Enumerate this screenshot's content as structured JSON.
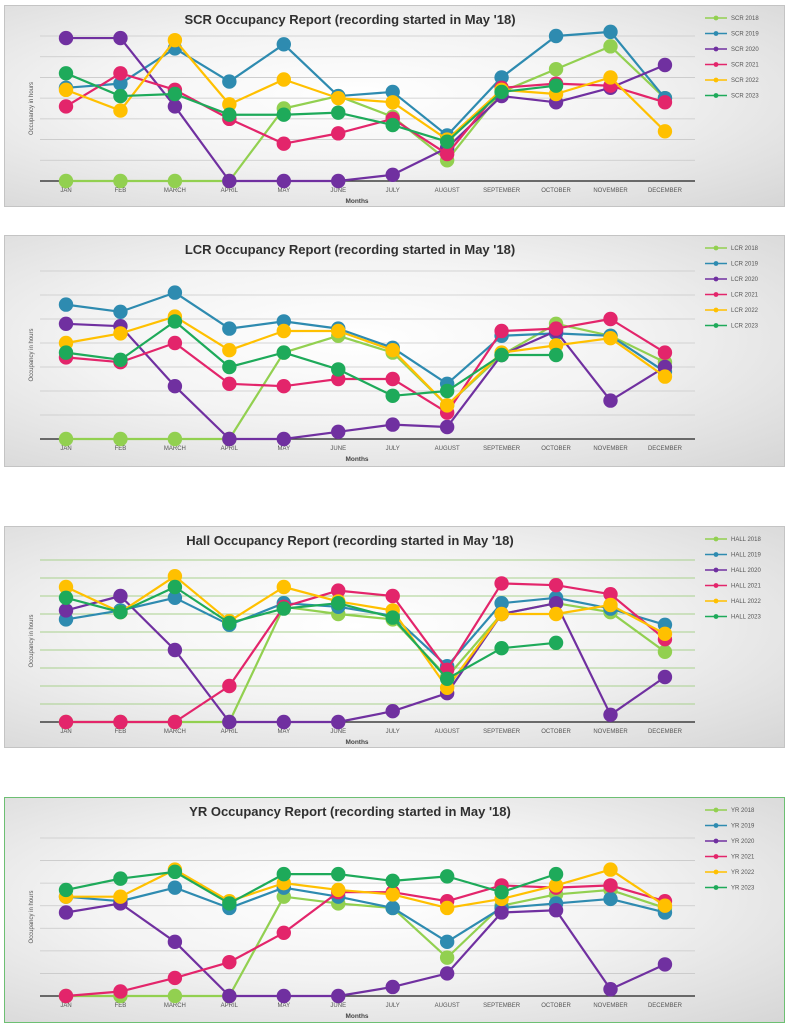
{
  "chart_data": [
    {
      "type": "line",
      "id": "scr",
      "title": "SCR  Occupancy Report (recording started in May '18)",
      "xlabel": "Months",
      "ylabel": "Occupancy in hours",
      "ylim": [
        0,
        7
      ],
      "grid": true,
      "legend_position": "right",
      "categories": [
        "JAN",
        "FEB",
        "MARCH",
        "APRIL",
        "MAY",
        "JUNE",
        "JULY",
        "AUGUST",
        "SEPTEMBER",
        "OCTOBER",
        "NOVEMBER",
        "DECEMBER"
      ],
      "series": [
        {
          "name": "SCR 2018",
          "color": "#92d050",
          "values": [
            0,
            0,
            0,
            0,
            3.5,
            4.1,
            3.1,
            1.0,
            4.3,
            5.4,
            6.5,
            4.0
          ]
        },
        {
          "name": "SCR 2019",
          "color": "#2e8bb0",
          "values": [
            4.5,
            4.7,
            6.4,
            4.8,
            6.6,
            4.1,
            4.3,
            2.2,
            5.0,
            7.0,
            7.2,
            4.0
          ]
        },
        {
          "name": "SCR 2020",
          "color": "#7030a0",
          "values": [
            6.9,
            6.9,
            3.6,
            0,
            0,
            0,
            0.3,
            1.6,
            4.1,
            3.8,
            4.5,
            5.6
          ]
        },
        {
          "name": "SCR 2021",
          "color": "#e3256b",
          "values": [
            3.6,
            5.2,
            4.4,
            3.0,
            1.8,
            2.3,
            3.0,
            1.3,
            4.5,
            4.7,
            4.6,
            3.8
          ]
        },
        {
          "name": "SCR 2022",
          "color": "#ffc000",
          "values": [
            4.4,
            3.4,
            6.8,
            3.7,
            4.9,
            4.0,
            3.8,
            2.0,
            4.4,
            4.2,
            5.0,
            2.4
          ]
        },
        {
          "name": "SCR 2023",
          "color": "#1eaa5a",
          "values": [
            5.2,
            4.1,
            4.2,
            3.2,
            3.2,
            3.3,
            2.7,
            1.9,
            4.3,
            4.6,
            null,
            null
          ]
        }
      ]
    },
    {
      "type": "line",
      "id": "lcr",
      "title": "LCR  Occupancy Report (recording started in May '18)",
      "xlabel": "Months",
      "ylabel": "Occupancy in hours",
      "ylim": [
        0,
        7
      ],
      "grid": true,
      "legend_position": "right",
      "categories": [
        "JAN",
        "FEB",
        "MARCH",
        "APRIL",
        "MAY",
        "JUNE",
        "JULY",
        "AUGUST",
        "SEPTEMBER",
        "OCTOBER",
        "NOVEMBER",
        "DECEMBER"
      ],
      "series": [
        {
          "name": "LCR 2018",
          "color": "#92d050",
          "values": [
            0,
            0,
            0,
            0,
            3.6,
            4.3,
            3.6,
            1.4,
            3.5,
            4.8,
            4.3,
            3.2
          ]
        },
        {
          "name": "LCR 2019",
          "color": "#2e8bb0",
          "values": [
            5.6,
            5.3,
            6.1,
            4.6,
            4.9,
            4.6,
            3.8,
            2.3,
            4.3,
            4.4,
            4.3,
            2.8
          ]
        },
        {
          "name": "LCR 2020",
          "color": "#7030a0",
          "values": [
            4.8,
            4.7,
            2.2,
            0,
            0,
            0.3,
            0.6,
            0.5,
            3.5,
            4.5,
            1.6,
            3.0
          ]
        },
        {
          "name": "LCR 2021",
          "color": "#e3256b",
          "values": [
            3.4,
            3.2,
            4.0,
            2.3,
            2.2,
            2.5,
            2.5,
            1.1,
            4.5,
            4.6,
            5.0,
            3.6
          ]
        },
        {
          "name": "LCR 2022",
          "color": "#ffc000",
          "values": [
            4.0,
            4.4,
            5.1,
            3.7,
            4.5,
            4.5,
            3.7,
            1.4,
            3.6,
            3.9,
            4.2,
            2.6
          ]
        },
        {
          "name": "LCR 2023",
          "color": "#1eaa5a",
          "values": [
            3.6,
            3.3,
            4.9,
            3.0,
            3.6,
            2.9,
            1.8,
            2.0,
            3.5,
            3.5,
            null,
            null
          ]
        }
      ]
    },
    {
      "type": "line",
      "id": "hall",
      "title": "Hall  Occupancy Report (recording started in May '18)",
      "xlabel": "Months",
      "ylabel": "Occupancy in hours",
      "ylim": [
        0,
        9
      ],
      "grid": true,
      "legend_position": "right",
      "categories": [
        "JAN",
        "FEB",
        "MARCH",
        "APRIL",
        "MAY",
        "JUNE",
        "JULY",
        "AUGUST",
        "SEPTEMBER",
        "OCTOBER",
        "NOVEMBER",
        "DECEMBER"
      ],
      "series": [
        {
          "name": "HALL 2018",
          "color": "#92d050",
          "values": [
            0,
            0,
            0,
            0,
            6.4,
            6.0,
            5.7,
            2.5,
            6.0,
            6.6,
            6.1,
            3.9
          ]
        },
        {
          "name": "HALL 2019",
          "color": "#2e8bb0",
          "values": [
            5.7,
            6.2,
            6.9,
            5.4,
            6.6,
            6.4,
            5.9,
            3.1,
            6.6,
            6.9,
            6.3,
            5.4
          ]
        },
        {
          "name": "HALL 2020",
          "color": "#7030a0",
          "values": [
            6.2,
            7.0,
            4.0,
            0,
            0,
            0,
            0.6,
            1.6,
            6.0,
            6.6,
            0.4,
            2.5
          ]
        },
        {
          "name": "HALL 2021",
          "color": "#e3256b",
          "values": [
            0,
            0,
            0,
            2.0,
            6.4,
            7.3,
            7.0,
            2.9,
            7.7,
            7.6,
            7.1,
            4.6
          ]
        },
        {
          "name": "HALL 2022",
          "color": "#ffc000",
          "values": [
            7.5,
            6.1,
            8.1,
            5.6,
            7.5,
            6.7,
            6.2,
            1.9,
            6.0,
            6.0,
            6.5,
            4.9
          ]
        },
        {
          "name": "HALL 2023",
          "color": "#1eaa5a",
          "values": [
            6.9,
            6.1,
            7.5,
            5.5,
            6.3,
            6.6,
            5.8,
            2.4,
            4.1,
            4.4,
            null,
            null
          ]
        }
      ]
    },
    {
      "type": "line",
      "id": "yr",
      "title": "YR  Occupancy Report (recording started in May '18)",
      "xlabel": "Months",
      "ylabel": "Occupancy in hours",
      "ylim": [
        0,
        7
      ],
      "grid": true,
      "legend_position": "right",
      "categories": [
        "JAN",
        "FEB",
        "MARCH",
        "APRIL",
        "MAY",
        "JUNE",
        "JULY",
        "AUGUST",
        "SEPTEMBER",
        "OCTOBER",
        "NOVEMBER",
        "DECEMBER"
      ],
      "series": [
        {
          "name": "YR 2018",
          "color": "#92d050",
          "values": [
            0,
            0,
            0,
            0,
            4.4,
            4.1,
            3.9,
            1.7,
            4.0,
            4.5,
            4.7,
            3.9
          ]
        },
        {
          "name": "YR 2019",
          "color": "#2e8bb0",
          "values": [
            4.4,
            4.2,
            4.8,
            3.9,
            4.8,
            4.4,
            3.9,
            2.4,
            3.9,
            4.1,
            4.3,
            3.7
          ]
        },
        {
          "name": "YR 2020",
          "color": "#7030a0",
          "values": [
            3.7,
            4.1,
            2.4,
            0,
            0,
            0,
            0.4,
            1.0,
            3.7,
            3.8,
            0.3,
            1.4
          ]
        },
        {
          "name": "YR 2021",
          "color": "#e3256b",
          "values": [
            0,
            0.2,
            0.8,
            1.5,
            2.8,
            4.6,
            4.6,
            4.2,
            4.9,
            4.8,
            4.9,
            4.2
          ]
        },
        {
          "name": "YR 2022",
          "color": "#ffc000",
          "values": [
            4.4,
            4.4,
            5.6,
            4.2,
            5.0,
            4.7,
            4.5,
            3.9,
            4.3,
            4.9,
            5.6,
            4.0
          ]
        },
        {
          "name": "YR 2023",
          "color": "#1eaa5a",
          "values": [
            4.7,
            5.2,
            5.5,
            4.1,
            5.4,
            5.4,
            5.1,
            5.3,
            4.6,
            5.4,
            null,
            null
          ]
        }
      ]
    }
  ]
}
